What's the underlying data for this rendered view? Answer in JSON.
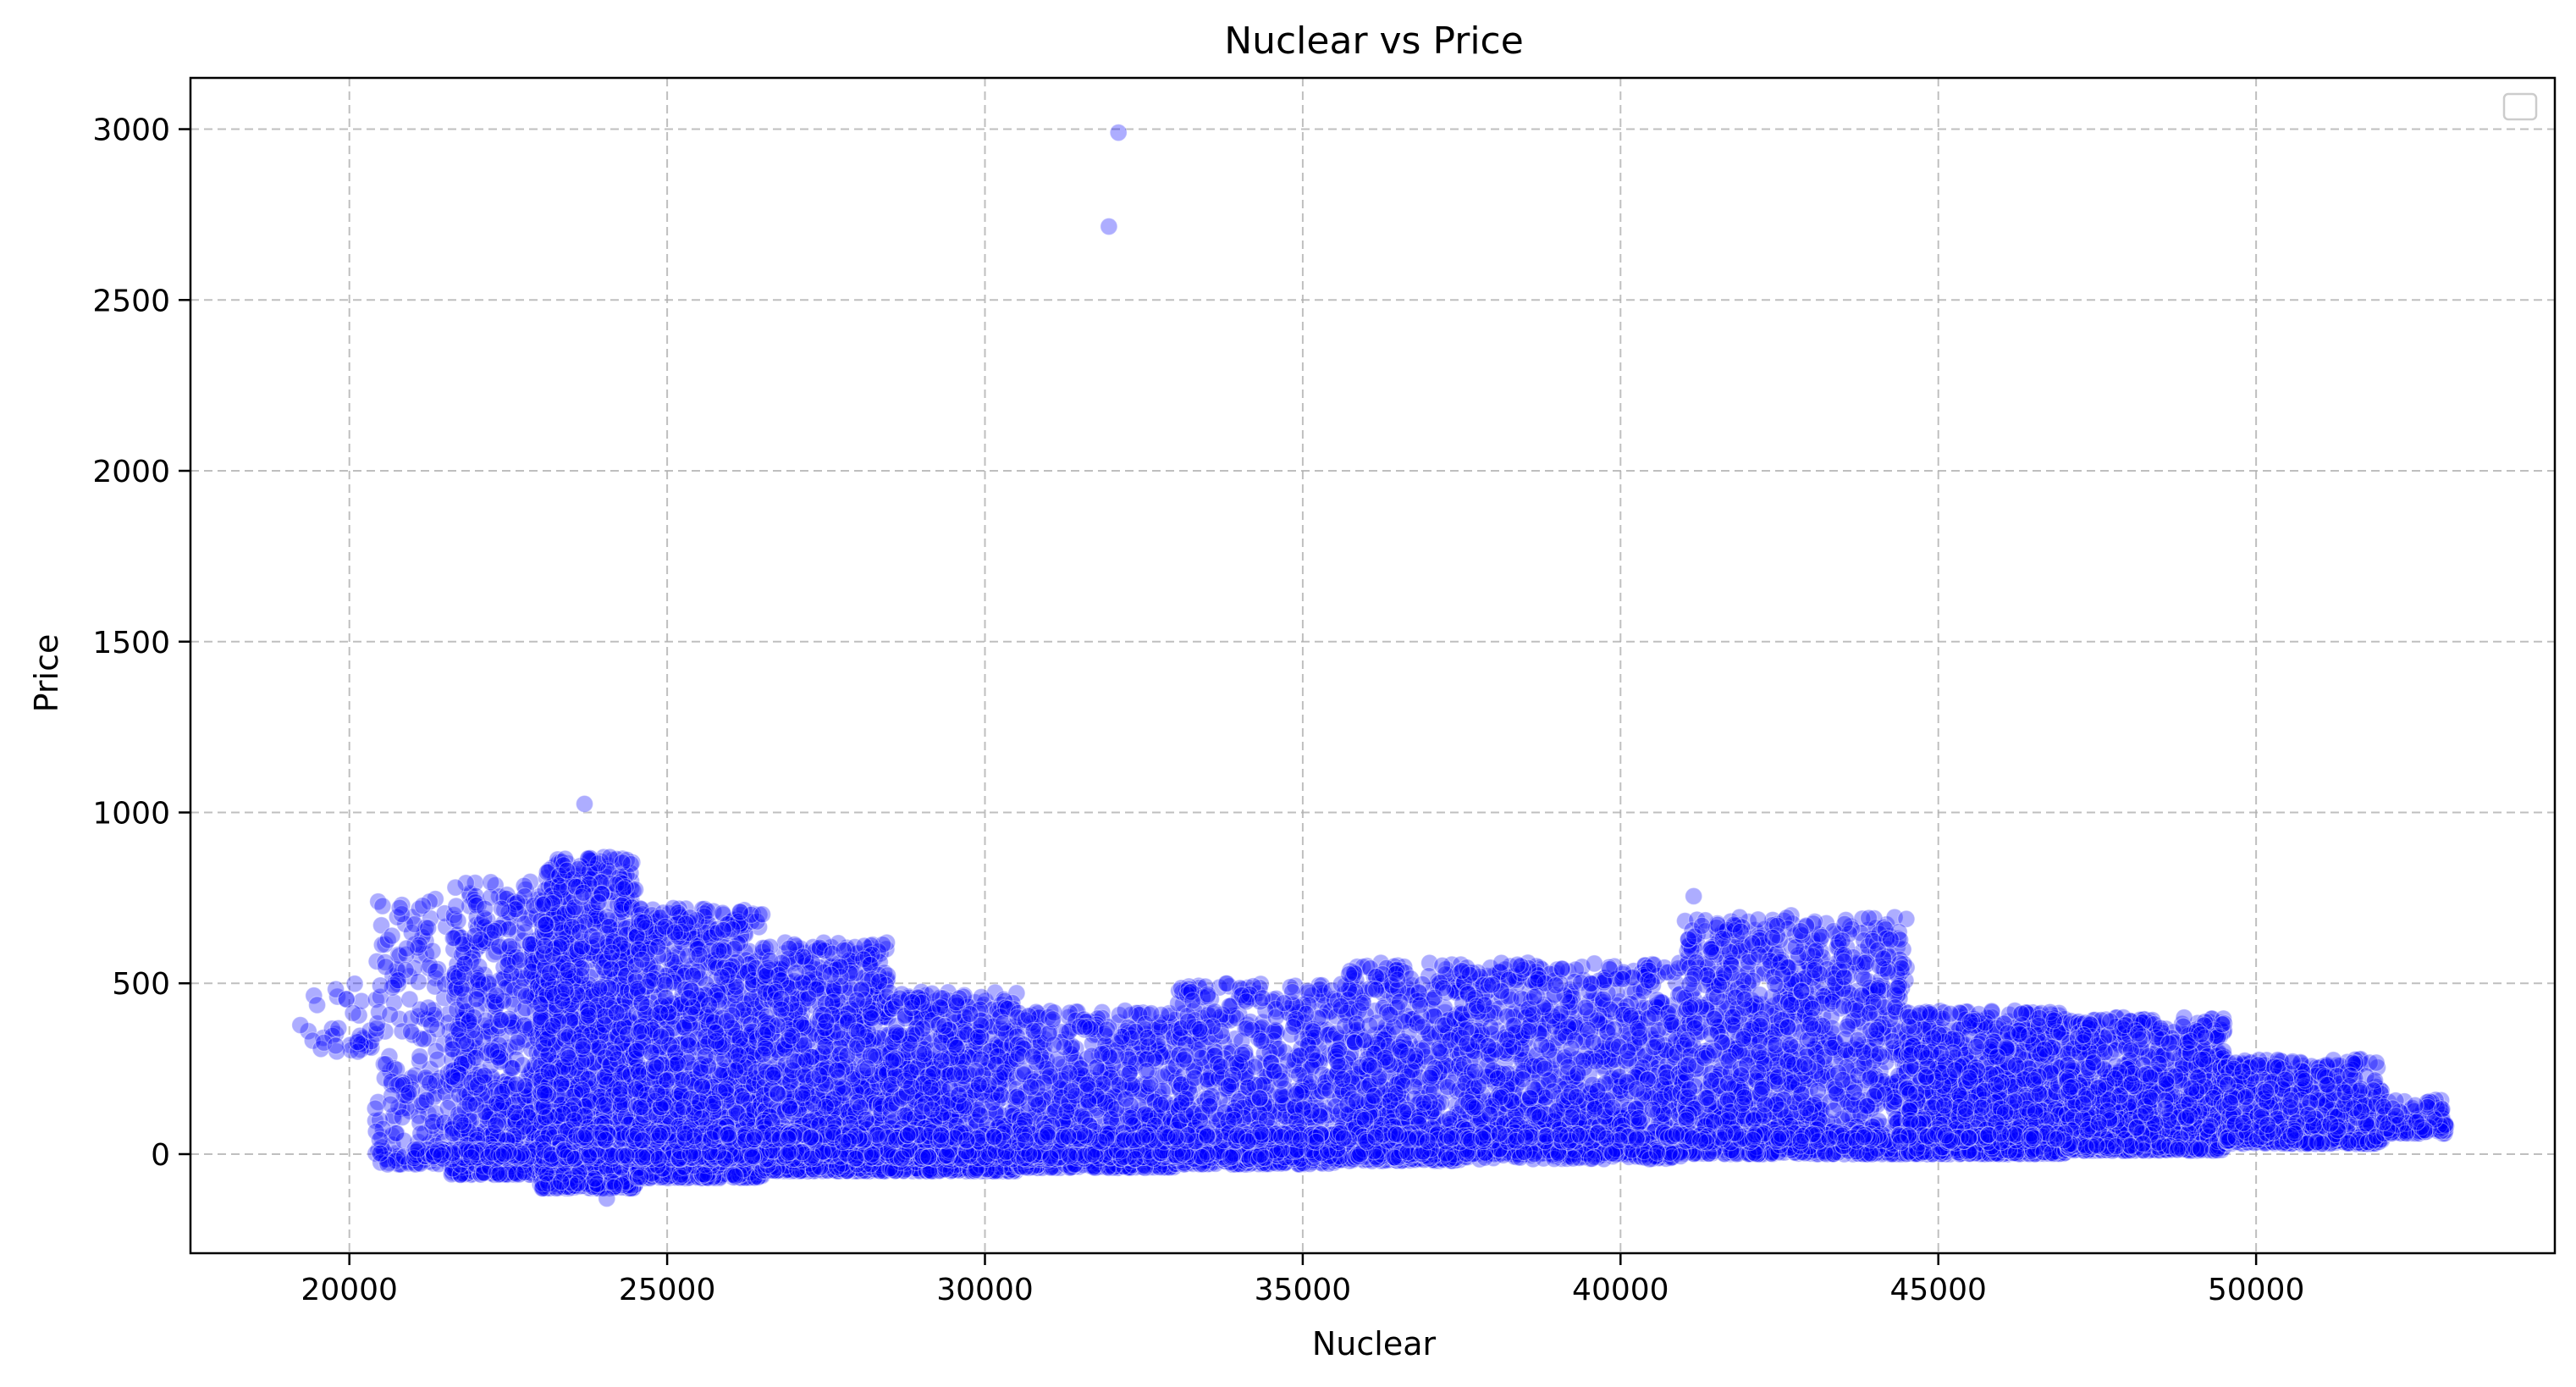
{
  "chart_data": {
    "type": "scatter",
    "title": "Nuclear vs Price",
    "xlabel": "Nuclear",
    "ylabel": "Price",
    "xlim": [
      17500,
      54700
    ],
    "ylim": [
      -290,
      3150
    ],
    "xticks": [
      20000,
      25000,
      30000,
      35000,
      40000,
      45000,
      50000
    ],
    "yticks": [
      0,
      500,
      1000,
      1500,
      2000,
      2500,
      3000
    ],
    "grid": true,
    "legend": "top-right (empty)",
    "color": "#0000ff",
    "outliers": [
      {
        "x": 32100,
        "y": 2990
      },
      {
        "x": 31950,
        "y": 2715
      },
      {
        "x": 23700,
        "y": 1025
      },
      {
        "x": 24050,
        "y": -130
      },
      {
        "x": 41150,
        "y": 755
      }
    ],
    "clusters": [
      {
        "x": [
          19200,
          20600
        ],
        "y": [
          300,
          500
        ],
        "n": 40
      },
      {
        "x": [
          20400,
          21600
        ],
        "y": [
          -30,
          750
        ],
        "n": 220
      },
      {
        "x": [
          21600,
          23000
        ],
        "y": [
          -60,
          800
        ],
        "n": 700
      },
      {
        "x": [
          23000,
          24500
        ],
        "y": [
          -100,
          870
        ],
        "n": 1400
      },
      {
        "x": [
          24500,
          26500
        ],
        "y": [
          -70,
          720
        ],
        "n": 1400
      },
      {
        "x": [
          26500,
          28500
        ],
        "y": [
          -50,
          620
        ],
        "n": 1100
      },
      {
        "x": [
          28500,
          30500
        ],
        "y": [
          -50,
          480
        ],
        "n": 900
      },
      {
        "x": [
          30500,
          33000
        ],
        "y": [
          -40,
          420
        ],
        "n": 800
      },
      {
        "x": [
          33000,
          35500
        ],
        "y": [
          -30,
          500
        ],
        "n": 800
      },
      {
        "x": [
          35500,
          37500
        ],
        "y": [
          -20,
          560
        ],
        "n": 800
      },
      {
        "x": [
          37500,
          41000
        ],
        "y": [
          0,
          560
        ],
        "n": 1300
      },
      {
        "x": [
          41000,
          44500
        ],
        "y": [
          0,
          700
        ],
        "n": 1500
      },
      {
        "x": [
          44500,
          47000
        ],
        "y": [
          0,
          420
        ],
        "n": 1200
      },
      {
        "x": [
          47000,
          49500
        ],
        "y": [
          10,
          400
        ],
        "n": 1100
      },
      {
        "x": [
          49500,
          52000
        ],
        "y": [
          30,
          280
        ],
        "n": 700
      },
      {
        "x": [
          52000,
          53000
        ],
        "y": [
          60,
          160
        ],
        "n": 120
      }
    ],
    "bands": [
      {
        "x": [
          21000,
          41000
        ],
        "y": 0,
        "n": 900
      },
      {
        "x": [
          23500,
          47000
        ],
        "y": 50,
        "n": 500
      }
    ]
  }
}
